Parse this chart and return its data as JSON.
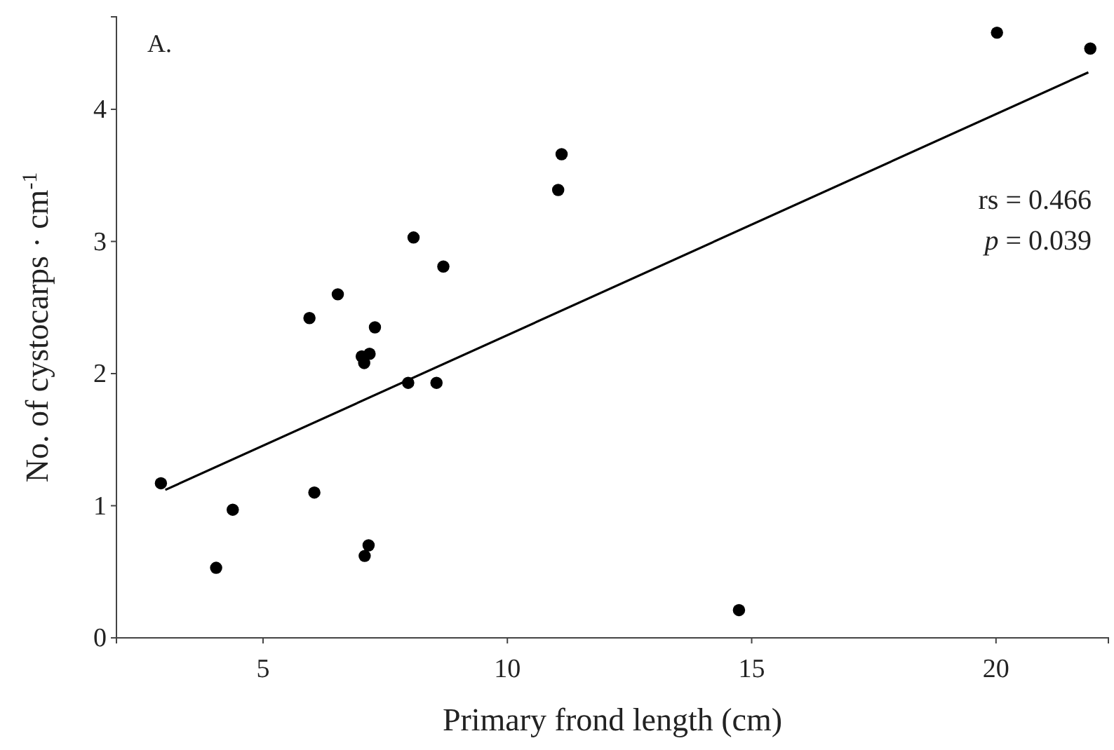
{
  "chart_data": {
    "type": "scatter",
    "xlabel": "Primary frond length (cm)",
    "ylabel": "No. of cystocarps · cm$^{-1}$",
    "annotations": [
      "A.",
      "rs = 0.466",
      "p = 0.039"
    ],
    "xlim": [
      2,
      22.3
    ],
    "xticks": [
      5,
      10,
      15,
      20
    ],
    "ylim": [
      0,
      4.7
    ],
    "yticks": [
      0,
      1,
      2,
      3,
      4
    ],
    "grid": false,
    "marker": "circle",
    "series": [
      {
        "color": "#000000",
        "x": [
          2.91,
          4.04,
          4.38,
          6.05,
          5.95,
          6.53,
          7.29,
          7.02,
          7.07,
          7.18,
          7.16,
          7.08,
          7.97,
          8.08,
          8.55,
          8.69,
          11.04,
          11.11,
          14.74,
          20.02,
          21.93
        ],
        "values": [
          1.17,
          0.53,
          0.97,
          1.1,
          2.42,
          2.6,
          2.35,
          2.13,
          2.08,
          2.15,
          0.7,
          0.62,
          1.93,
          3.03,
          1.93,
          2.81,
          3.39,
          3.66,
          0.21,
          4.58,
          4.46
        ]
      },
      {
        "type": "line",
        "color": "#000000",
        "line_style": "solid",
        "marker": "none",
        "x": [
          3.0,
          21.89
        ],
        "values": [
          1.12,
          4.28
        ]
      }
    ]
  }
}
